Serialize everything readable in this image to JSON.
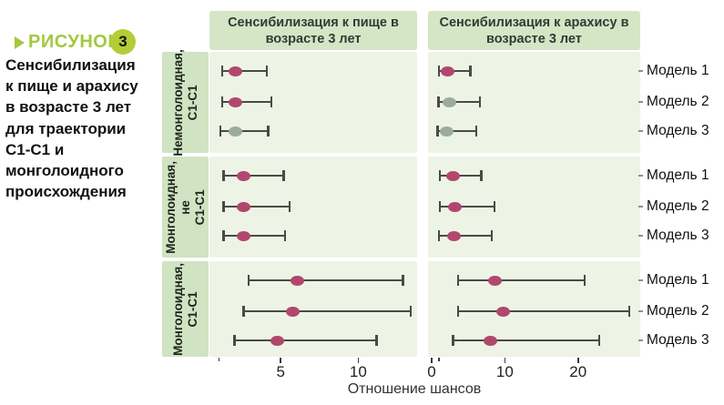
{
  "figure": {
    "marker": "РИСУНОК",
    "number": "3"
  },
  "caption": "Сенсибилизация\nк пище и арахису\nв возрасте 3 лет\nдля траектории\nC1-C1 и\nмонголоидного\nпроисхождения",
  "colors": {
    "pink": "#b1476e",
    "gray": "#9cab9e",
    "line": "#4a4a44",
    "lime": "#a3c83e",
    "badge": "#b3cd37",
    "header_bg": "#d4e6c6",
    "strip_bg": "#d0e3c2",
    "plot_bg": "#edf4e6"
  },
  "chart_data": {
    "type": "scatter",
    "subtype": "forest-plot-dot-ci",
    "xlabel": "Отношение шансов",
    "legend": "none",
    "grid": false,
    "panels": [
      {
        "key": "food",
        "title": "Сенсибилизация к пище в\nвозрасте 3 лет",
        "xlim": [
          0.4,
          13.8
        ],
        "ticks": [
          5,
          10
        ],
        "minor_ticks": [
          1
        ]
      },
      {
        "key": "peanut",
        "title": "Сенсибилизация к арахису в\nвозрасте 3 лет",
        "xlim": [
          -0.5,
          28.5
        ],
        "ticks": [
          0,
          10,
          20
        ],
        "minor_ticks": [
          1
        ]
      }
    ],
    "groups": [
      {
        "label": "Немонголоидная,\nC1-C1",
        "rows": [
          {
            "model": "Модель 1",
            "food": {
              "or": 2.1,
              "lo": 1.2,
              "hi": 4.1,
              "color": "pink"
            },
            "peanut": {
              "or": 2.2,
              "lo": 1.0,
              "hi": 5.3,
              "color": "pink"
            }
          },
          {
            "model": "Модель 2",
            "food": {
              "or": 2.1,
              "lo": 1.2,
              "hi": 4.4,
              "color": "pink"
            },
            "peanut": {
              "or": 2.4,
              "lo": 0.9,
              "hi": 6.6,
              "color": "gray"
            }
          },
          {
            "model": "Модель 3",
            "food": {
              "or": 2.1,
              "lo": 1.1,
              "hi": 4.2,
              "color": "gray"
            },
            "peanut": {
              "or": 2.1,
              "lo": 0.8,
              "hi": 6.1,
              "color": "gray"
            }
          }
        ]
      },
      {
        "label": "Монголоидная,\nне\nC1-C1",
        "rows": [
          {
            "model": "Модель 1",
            "food": {
              "or": 2.6,
              "lo": 1.3,
              "hi": 5.2,
              "color": "pink"
            },
            "peanut": {
              "or": 2.9,
              "lo": 1.1,
              "hi": 6.8,
              "color": "pink"
            }
          },
          {
            "model": "Модель 2",
            "food": {
              "or": 2.6,
              "lo": 1.3,
              "hi": 5.6,
              "color": "pink"
            },
            "peanut": {
              "or": 3.2,
              "lo": 1.1,
              "hi": 8.6,
              "color": "pink"
            }
          },
          {
            "model": "Модель 3",
            "food": {
              "or": 2.6,
              "lo": 1.3,
              "hi": 5.3,
              "color": "pink"
            },
            "peanut": {
              "or": 3.0,
              "lo": 1.0,
              "hi": 8.2,
              "color": "pink"
            }
          }
        ]
      },
      {
        "label": "Монголоидная,\nC1-C1",
        "rows": [
          {
            "model": "Модель 1",
            "food": {
              "or": 6.1,
              "lo": 2.9,
              "hi": 12.9,
              "color": "pink"
            },
            "peanut": {
              "or": 8.6,
              "lo": 3.6,
              "hi": 20.9,
              "color": "pink"
            }
          },
          {
            "model": "Модель 2",
            "food": {
              "or": 5.8,
              "lo": 2.6,
              "hi": 13.4,
              "color": "pink"
            },
            "peanut": {
              "or": 9.8,
              "lo": 3.6,
              "hi": 27.0,
              "color": "pink"
            }
          },
          {
            "model": "Модель 3",
            "food": {
              "or": 4.8,
              "lo": 2.0,
              "hi": 11.2,
              "color": "pink"
            },
            "peanut": {
              "or": 8.0,
              "lo": 2.9,
              "hi": 22.9,
              "color": "pink"
            }
          }
        ]
      }
    ]
  }
}
